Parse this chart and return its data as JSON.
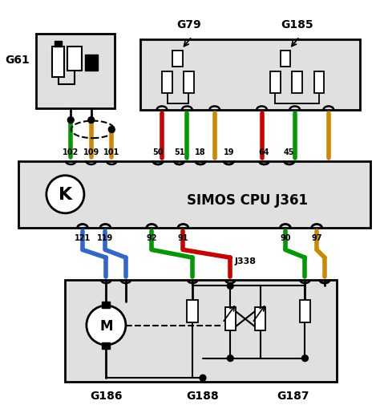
{
  "white": "#ffffff",
  "black": "#000000",
  "gray": "#e0e0e0",
  "red": "#cc0000",
  "green": "#009900",
  "gold": "#cc8800",
  "blue": "#3366cc",
  "title": "SIMOS CPU J361",
  "top_labels": [
    "102",
    "109",
    "101",
    "50",
    "51",
    "18",
    "19",
    "64",
    "45"
  ],
  "bot_labels": [
    "121",
    "119",
    "92",
    "91",
    "90",
    "97"
  ],
  "g61_label": "G61",
  "g79_label": "G79",
  "g185_label": "G185",
  "g186_label": "G186",
  "g188_label": "G188",
  "g187_label": "G187",
  "j338_label": "J338",
  "k_label": "K",
  "m_label": "M"
}
